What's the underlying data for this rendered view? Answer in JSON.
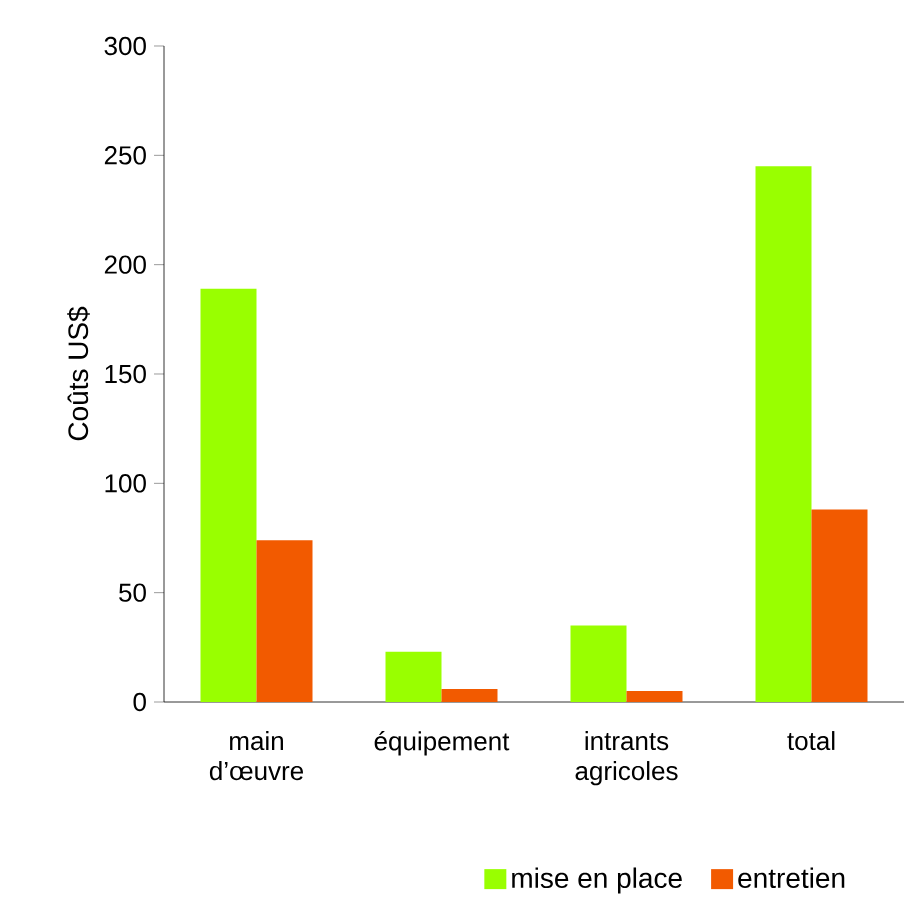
{
  "chart_data": {
    "type": "bar",
    "ylabel": "Coûts US$",
    "categories": [
      "main d’œuvre",
      "équipement",
      "intrants agricoles",
      "total"
    ],
    "series": [
      {
        "name": "mise en place",
        "color": "#99ff00",
        "values": [
          189,
          23,
          35,
          245
        ]
      },
      {
        "name": "entretien",
        "color": "#f25a00",
        "values": [
          74,
          6,
          5,
          88
        ]
      }
    ],
    "ylim": [
      0,
      300
    ],
    "yticks": [
      0,
      50,
      100,
      150,
      200,
      250,
      300
    ],
    "grid": false,
    "legend": "bottom"
  }
}
